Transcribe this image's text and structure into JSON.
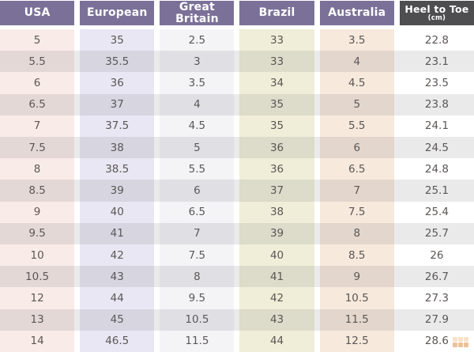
{
  "chart_data": {
    "type": "table",
    "columns": [
      {
        "key": "usa",
        "label": "USA"
      },
      {
        "key": "european",
        "label": "European"
      },
      {
        "key": "great-britain",
        "label": "Great Britain"
      },
      {
        "key": "brazil",
        "label": "Brazil"
      },
      {
        "key": "australia",
        "label": "Australia"
      },
      {
        "key": "heel-to-toe",
        "label": "Heel to Toe",
        "sublabel": "(cm)"
      }
    ],
    "rows": [
      [
        "5",
        "35",
        "2.5",
        "33",
        "3.5",
        "22.8"
      ],
      [
        "5.5",
        "35.5",
        "3",
        "33",
        "4",
        "23.1"
      ],
      [
        "6",
        "36",
        "3.5",
        "34",
        "4.5",
        "23.5"
      ],
      [
        "6.5",
        "37",
        "4",
        "35",
        "5",
        "23.8"
      ],
      [
        "7",
        "37.5",
        "4.5",
        "35",
        "5.5",
        "24.1"
      ],
      [
        "7.5",
        "38",
        "5",
        "36",
        "6",
        "24.5"
      ],
      [
        "8",
        "38.5",
        "5.5",
        "36",
        "6.5",
        "24.8"
      ],
      [
        "8.5",
        "39",
        "6",
        "37",
        "7",
        "25.1"
      ],
      [
        "9",
        "40",
        "6.5",
        "38",
        "7.5",
        "25.4"
      ],
      [
        "9.5",
        "41",
        "7",
        "39",
        "8",
        "25.7"
      ],
      [
        "10",
        "42",
        "7.5",
        "40",
        "8.5",
        "26"
      ],
      [
        "10.5",
        "43",
        "8",
        "41",
        "9",
        "26.7"
      ],
      [
        "12",
        "44",
        "9.5",
        "42",
        "10.5",
        "27.3"
      ],
      [
        "13",
        "45",
        "10.5",
        "43",
        "11.5",
        "27.9"
      ],
      [
        "14",
        "46.5",
        "11.5",
        "44",
        "12.5",
        "28.6"
      ]
    ]
  },
  "colors": {
    "header_bg": "#7b7198",
    "heel_header_bg": "#4e4d4f",
    "header_text": "#ffffff",
    "cell_text": "#5b5755",
    "column_tints": [
      "#f9ebe8",
      "#e9e7f3",
      "#f4f4f7",
      "#f0eed8",
      "#f7e9dc",
      "#ffffff"
    ],
    "stripe_overlay": "rgba(90,90,100,0.13)",
    "watermark_orange": "#e09a55",
    "watermark_light": "#f2cfa6"
  }
}
